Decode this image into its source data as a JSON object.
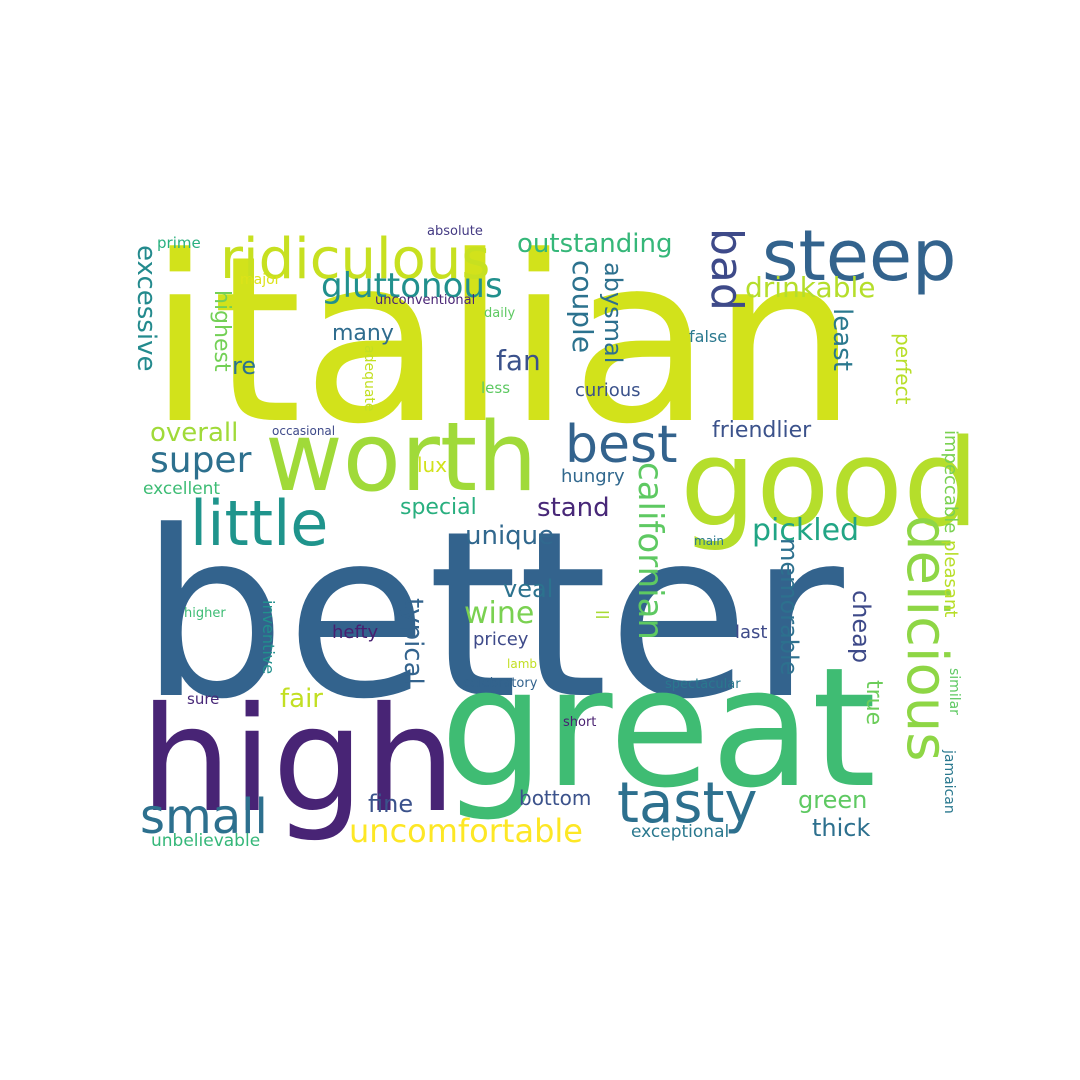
{
  "word_cloud": {
    "words": [
      {
        "text": "italian",
        "color": "#d2e21b"
      },
      {
        "text": "better",
        "color": "#33638d"
      },
      {
        "text": "great",
        "color": "#3fbc73"
      },
      {
        "text": "high",
        "color": "#482475"
      },
      {
        "text": "good",
        "color": "#b5de2b"
      },
      {
        "text": "worth",
        "color": "#a0da39"
      },
      {
        "text": "steep",
        "color": "#33638d"
      },
      {
        "text": "ridiculous",
        "color": "#c7e020"
      },
      {
        "text": "little",
        "color": "#1f948c"
      },
      {
        "text": "delicious",
        "color": "#8ed645"
      },
      {
        "text": "tasty",
        "color": "#2d708e"
      },
      {
        "text": "best",
        "color": "#33638d"
      },
      {
        "text": "small",
        "color": "#2d708e"
      },
      {
        "text": "bad",
        "color": "#3e4a89"
      },
      {
        "text": "uncomfortable",
        "color": "#fde725"
      },
      {
        "text": "gluttonous",
        "color": "#21908d"
      },
      {
        "text": "super",
        "color": "#2d708e"
      },
      {
        "text": "californian",
        "color": "#5ec962"
      },
      {
        "text": "outstanding",
        "color": "#35b779"
      },
      {
        "text": "drinkable",
        "color": "#b5de2b"
      },
      {
        "text": "couple",
        "color": "#2c728e"
      },
      {
        "text": "pickled",
        "color": "#21a585"
      },
      {
        "text": "wine",
        "color": "#7ad151"
      },
      {
        "text": "excessive",
        "color": "#238a8d"
      },
      {
        "text": "abysmal",
        "color": "#2d708e"
      },
      {
        "text": "memorable",
        "color": "#2d708e"
      },
      {
        "text": "typical",
        "color": "#33638d"
      },
      {
        "text": "overall",
        "color": "#a0da39"
      },
      {
        "text": "friendlier",
        "color": "#3b528b"
      },
      {
        "text": "stand",
        "color": "#482878"
      },
      {
        "text": "fan",
        "color": "#3b528b"
      },
      {
        "text": "unique",
        "color": "#31688e"
      },
      {
        "text": "least",
        "color": "#2a788e"
      },
      {
        "text": "cheap",
        "color": "#3e4a89"
      },
      {
        "text": "green",
        "color": "#5ec962"
      },
      {
        "text": "special",
        "color": "#29af7f"
      },
      {
        "text": "highest",
        "color": "#73d056"
      },
      {
        "text": "fair",
        "color": "#c2df23"
      },
      {
        "text": "true",
        "color": "#6ccd5a"
      },
      {
        "text": "veal",
        "color": "#2c728e"
      },
      {
        "text": "fine",
        "color": "#3b528b"
      },
      {
        "text": "thick",
        "color": "#2d708e"
      },
      {
        "text": "bottom",
        "color": "#3b528b"
      },
      {
        "text": "perfect",
        "color": "#b8de29"
      },
      {
        "text": "many",
        "color": "#2f6c8e"
      },
      {
        "text": "re",
        "color": "#2c728e"
      },
      {
        "text": "lux",
        "color": "#d2e21b"
      },
      {
        "text": "hungry",
        "color": "#31688e"
      },
      {
        "text": "last",
        "color": "#3e4a89"
      },
      {
        "text": "impeccable",
        "color": "#7ad151"
      },
      {
        "text": "pleasant",
        "color": "#b8de29"
      },
      {
        "text": "hefty",
        "color": "#481f70"
      },
      {
        "text": "pricey",
        "color": "#3e4a89"
      },
      {
        "text": "curious",
        "color": "#3b528b"
      },
      {
        "text": "exceptional",
        "color": "#2a788e"
      },
      {
        "text": "excellent",
        "color": "#3dbc74"
      },
      {
        "text": "inventive",
        "color": "#21908d"
      },
      {
        "text": "unbelievable",
        "color": "#35b779"
      },
      {
        "text": "sure",
        "color": "#482878"
      },
      {
        "text": "similar",
        "color": "#5ec962"
      },
      {
        "text": "jamaican",
        "color": "#2a788e"
      },
      {
        "text": "prime",
        "color": "#2ab07f"
      },
      {
        "text": "major",
        "color": "#dce319"
      },
      {
        "text": "adequate",
        "color": "#c2df23"
      },
      {
        "text": "false",
        "color": "#2a788e"
      },
      {
        "text": "less",
        "color": "#5ec962"
      },
      {
        "text": "ll",
        "color": "#a8db34"
      },
      {
        "text": "spectacular",
        "color": "#2a788e"
      },
      {
        "text": "celebratory",
        "color": "#33638d"
      },
      {
        "text": "higher",
        "color": "#3dbc74"
      },
      {
        "text": "daily",
        "color": "#5ec962"
      },
      {
        "text": "unconventional",
        "color": "#482475"
      },
      {
        "text": "absolute",
        "color": "#443a83"
      },
      {
        "text": "occasional",
        "color": "#3e4a89"
      },
      {
        "text": "main",
        "color": "#2a788e"
      },
      {
        "text": "short",
        "color": "#481f70"
      },
      {
        "text": "lamb",
        "color": "#c2df23"
      }
    ]
  }
}
